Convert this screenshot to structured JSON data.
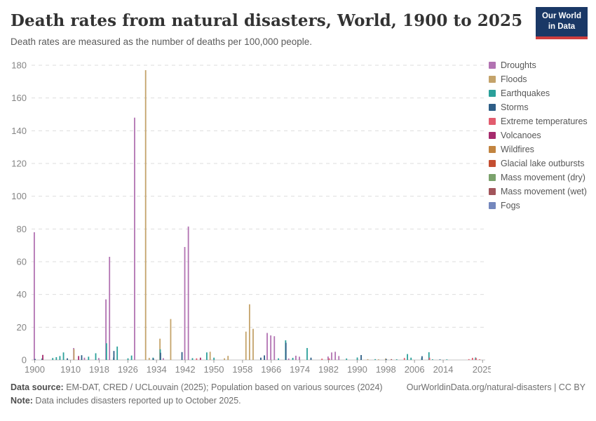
{
  "header": {
    "title": "Death rates from natural disasters, World, 1900 to 2025",
    "subtitle": "Death rates are measured as the number of deaths per 100,000 people.",
    "logo_line1": "Our World",
    "logo_line2": "in Data"
  },
  "footer": {
    "source_label": "Data source:",
    "source_text": " EM-DAT, CRED / UCLouvain (2025); Population based on various sources (2024)",
    "link_text": "OurWorldinData.org/natural-disasters | CC BY",
    "note_label": "Note:",
    "note_text": " Data includes disasters reported up to October 2025."
  },
  "colors": {
    "grid": "#dddddd",
    "axis_line": "#c4c4c4",
    "tick": "#999999",
    "axis_text": "#858585",
    "logo_bg": "#1a3866",
    "logo_stripe": "#cf3e3e"
  },
  "chart_data": {
    "type": "bar",
    "title": "Death rates from natural disasters, World, 1900 to 2025",
    "xlabel": "",
    "ylabel": "Deaths per 100,000 people",
    "ylim": [
      0,
      180
    ],
    "ytick_step": 20,
    "xlim": [
      1900,
      2026
    ],
    "xticks": [
      1900,
      1910,
      1918,
      1926,
      1934,
      1942,
      1950,
      1958,
      1966,
      1974,
      1982,
      1990,
      1998,
      2006,
      2014,
      2025
    ],
    "grid": "horizontal-dashed",
    "legend_position": "right",
    "series": [
      {
        "name": "Droughts",
        "color": "#b273b2"
      },
      {
        "name": "Floods",
        "color": "#c4a36a"
      },
      {
        "name": "Earthquakes",
        "color": "#2aa09a"
      },
      {
        "name": "Storms",
        "color": "#2e5e87"
      },
      {
        "name": "Extreme temperatures",
        "color": "#e25c6e"
      },
      {
        "name": "Volcanoes",
        "color": "#a62b6d"
      },
      {
        "name": "Wildfires",
        "color": "#c28440"
      },
      {
        "name": "Glacial lake outbursts",
        "color": "#c44e31"
      },
      {
        "name": "Mass movement (dry)",
        "color": "#7ba26c"
      },
      {
        "name": "Mass movement (wet)",
        "color": "#a2555b"
      },
      {
        "name": "Fogs",
        "color": "#7487bd"
      }
    ],
    "points": [
      [
        1900,
        "Droughts",
        78
      ],
      [
        1900,
        "Storms",
        0.6
      ],
      [
        1902,
        "Volcanoes",
        3.1
      ],
      [
        1902,
        "Earthquakes",
        0.9
      ],
      [
        1905,
        "Earthquakes",
        1.2
      ],
      [
        1906,
        "Earthquakes",
        1.7
      ],
      [
        1907,
        "Earthquakes",
        2.4
      ],
      [
        1908,
        "Earthquakes",
        4.6
      ],
      [
        1909,
        "Storms",
        1.0
      ],
      [
        1911,
        "Droughts",
        7.3
      ],
      [
        1911,
        "Floods",
        6.6
      ],
      [
        1912,
        "Volcanoes",
        2.4
      ],
      [
        1913,
        "Storms",
        2.9
      ],
      [
        1914,
        "Droughts",
        1.4
      ],
      [
        1915,
        "Earthquakes",
        2.0
      ],
      [
        1917,
        "Earthquakes",
        4.1
      ],
      [
        1918,
        "Droughts",
        1.2
      ],
      [
        1920,
        "Droughts",
        37
      ],
      [
        1920,
        "Earthquakes",
        10.2
      ],
      [
        1921,
        "Droughts",
        63
      ],
      [
        1922,
        "Storms",
        5.5
      ],
      [
        1922,
        "Earthquakes",
        1.5
      ],
      [
        1923,
        "Earthquakes",
        8.2
      ],
      [
        1926,
        "Earthquakes",
        1.0
      ],
      [
        1927,
        "Earthquakes",
        2.7
      ],
      [
        1928,
        "Droughts",
        148
      ],
      [
        1931,
        "Floods",
        177
      ],
      [
        1932,
        "Floods",
        1.3
      ],
      [
        1933,
        "Earthquakes",
        1.4
      ],
      [
        1933,
        "Storms",
        1.0
      ],
      [
        1935,
        "Floods",
        13
      ],
      [
        1935,
        "Earthquakes",
        6.5
      ],
      [
        1935,
        "Storms",
        4.4
      ],
      [
        1936,
        "Droughts",
        1.1
      ],
      [
        1938,
        "Floods",
        25
      ],
      [
        1941,
        "Storms",
        4.8
      ],
      [
        1942,
        "Droughts",
        69
      ],
      [
        1943,
        "Droughts",
        81.5
      ],
      [
        1944,
        "Earthquakes",
        1.1
      ],
      [
        1945,
        "Extreme temperatures",
        1.0
      ],
      [
        1946,
        "Volcanoes",
        1.4
      ],
      [
        1948,
        "Earthquakes",
        4.6
      ],
      [
        1949,
        "Floods",
        5.0
      ],
      [
        1950,
        "Earthquakes",
        1.4
      ],
      [
        1953,
        "Floods",
        1.0
      ],
      [
        1954,
        "Floods",
        2.5
      ],
      [
        1959,
        "Floods",
        17.3
      ],
      [
        1960,
        "Floods",
        34
      ],
      [
        1961,
        "Floods",
        19
      ],
      [
        1963,
        "Storms",
        1.4
      ],
      [
        1964,
        "Storms",
        2.8
      ],
      [
        1965,
        "Droughts",
        16.5
      ],
      [
        1966,
        "Droughts",
        15
      ],
      [
        1967,
        "Droughts",
        14.5
      ],
      [
        1968,
        "Earthquakes",
        1.0
      ],
      [
        1970,
        "Earthquakes",
        12
      ],
      [
        1970,
        "Storms",
        10.5
      ],
      [
        1971,
        "Droughts",
        0.9
      ],
      [
        1972,
        "Earthquakes",
        1.3
      ],
      [
        1973,
        "Droughts",
        2.6
      ],
      [
        1974,
        "Droughts",
        2.0
      ],
      [
        1976,
        "Earthquakes",
        7.3
      ],
      [
        1977,
        "Storms",
        1.4
      ],
      [
        1980,
        "Extreme temperatures",
        0.8
      ],
      [
        1982,
        "Droughts",
        2.1
      ],
      [
        1982,
        "Extreme temperatures",
        1.0
      ],
      [
        1983,
        "Droughts",
        4.6
      ],
      [
        1984,
        "Droughts",
        5.0
      ],
      [
        1985,
        "Droughts",
        2.4
      ],
      [
        1987,
        "Earthquakes",
        0.9
      ],
      [
        1990,
        "Earthquakes",
        1.5
      ],
      [
        1991,
        "Storms",
        3.0
      ],
      [
        1993,
        "Floods",
        0.5
      ],
      [
        1995,
        "Earthquakes",
        0.5
      ],
      [
        1996,
        "Floods",
        0.4
      ],
      [
        1998,
        "Floods",
        0.9
      ],
      [
        1998,
        "Storms",
        0.6
      ],
      [
        1999,
        "Mass movement (wet)",
        0.5
      ],
      [
        2001,
        "Earthquakes",
        0.4
      ],
      [
        2003,
        "Extreme temperatures",
        1.2
      ],
      [
        2004,
        "Earthquakes",
        3.6
      ],
      [
        2005,
        "Earthquakes",
        1.4
      ],
      [
        2008,
        "Storms",
        2.3
      ],
      [
        2008,
        "Earthquakes",
        1.3
      ],
      [
        2010,
        "Earthquakes",
        4.7
      ],
      [
        2010,
        "Extreme temperatures",
        1.4
      ],
      [
        2011,
        "Earthquakes",
        0.4
      ],
      [
        2013,
        "Storms",
        0.3
      ],
      [
        2015,
        "Earthquakes",
        0.3
      ],
      [
        2021,
        "Extreme temperatures",
        0.5
      ],
      [
        2022,
        "Extreme temperatures",
        1.3
      ],
      [
        2023,
        "Earthquakes",
        1.5
      ],
      [
        2023,
        "Extreme temperatures",
        1.2
      ],
      [
        2024,
        "Extreme temperatures",
        0.4
      ]
    ]
  }
}
